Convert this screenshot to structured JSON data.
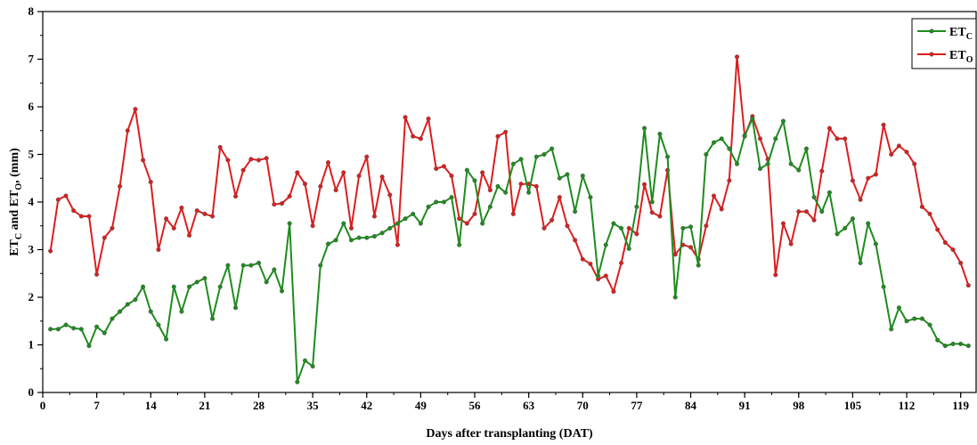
{
  "chart_data": {
    "type": "line",
    "xlabel": "Days after transplanting (DAT)",
    "ylabel_parts": [
      "ET",
      "C",
      " and ET",
      "O",
      ", (mm)"
    ],
    "xlim": [
      0,
      121
    ],
    "ylim": [
      0,
      8
    ],
    "x_ticks": [
      0,
      7,
      14,
      21,
      28,
      35,
      42,
      49,
      56,
      63,
      70,
      77,
      84,
      91,
      98,
      105,
      112,
      119
    ],
    "y_ticks": [
      0,
      1,
      2,
      3,
      4,
      5,
      6,
      7,
      8
    ],
    "grid": false,
    "legend_position": "top-right",
    "x": [
      1,
      2,
      3,
      4,
      5,
      6,
      7,
      8,
      9,
      10,
      11,
      12,
      13,
      14,
      15,
      16,
      17,
      18,
      19,
      20,
      21,
      22,
      23,
      24,
      25,
      26,
      27,
      28,
      29,
      30,
      31,
      32,
      33,
      34,
      35,
      36,
      37,
      38,
      39,
      40,
      41,
      42,
      43,
      44,
      45,
      46,
      47,
      48,
      49,
      50,
      51,
      52,
      53,
      54,
      55,
      56,
      57,
      58,
      59,
      60,
      61,
      62,
      63,
      64,
      65,
      66,
      67,
      68,
      69,
      70,
      71,
      72,
      73,
      74,
      75,
      76,
      77,
      78,
      79,
      80,
      81,
      82,
      83,
      84,
      85,
      86,
      87,
      88,
      89,
      90,
      91,
      92,
      93,
      94,
      95,
      96,
      97,
      98,
      99,
      100,
      101,
      102,
      103,
      104,
      105,
      106,
      107,
      108,
      109,
      110,
      111,
      112,
      113,
      114,
      115,
      116,
      117,
      118,
      119,
      120
    ],
    "series": [
      {
        "name_parts": [
          "ET",
          "C"
        ],
        "color": "#1e8c1e",
        "values": [
          1.33,
          1.33,
          1.42,
          1.35,
          1.33,
          0.98,
          1.38,
          1.25,
          1.55,
          1.7,
          1.85,
          1.95,
          2.22,
          1.7,
          1.42,
          1.12,
          2.22,
          1.7,
          2.22,
          2.32,
          2.4,
          1.55,
          2.22,
          2.67,
          1.78,
          2.67,
          2.67,
          2.72,
          2.32,
          2.58,
          2.13,
          3.55,
          0.22,
          0.67,
          0.55,
          2.67,
          3.12,
          3.2,
          3.55,
          3.2,
          3.25,
          3.25,
          3.28,
          3.35,
          3.45,
          3.55,
          3.65,
          3.75,
          3.55,
          3.9,
          4.0,
          4.0,
          4.1,
          3.1,
          4.67,
          4.45,
          3.55,
          3.9,
          4.33,
          4.2,
          4.8,
          4.9,
          4.2,
          4.95,
          5.0,
          5.12,
          4.5,
          4.58,
          3.8,
          4.55,
          4.1,
          2.45,
          3.1,
          3.55,
          3.45,
          3.02,
          3.9,
          5.55,
          4.0,
          5.43,
          4.95,
          2.0,
          3.45,
          3.48,
          2.67,
          5.0,
          5.25,
          5.33,
          5.12,
          4.8,
          5.4,
          5.75,
          4.7,
          4.8,
          5.33,
          5.7,
          4.8,
          4.67,
          5.12,
          4.1,
          3.8,
          4.2,
          3.33,
          3.45,
          3.65,
          2.72,
          3.55,
          3.12,
          2.22,
          1.33,
          1.78,
          1.5,
          1.55,
          1.55,
          1.42,
          1.1,
          0.98,
          1.02,
          1.02,
          0.98
        ]
      },
      {
        "name_parts": [
          "ET",
          "O"
        ],
        "color": "#dc1e1e",
        "values": [
          2.97,
          4.05,
          4.13,
          3.82,
          3.7,
          3.7,
          2.48,
          3.25,
          3.45,
          4.33,
          5.5,
          5.95,
          4.88,
          4.42,
          3.0,
          3.65,
          3.45,
          3.88,
          3.3,
          3.82,
          3.75,
          3.7,
          5.15,
          4.88,
          4.12,
          4.67,
          4.9,
          4.88,
          4.92,
          3.95,
          3.97,
          4.12,
          4.62,
          4.38,
          3.5,
          4.33,
          4.83,
          4.25,
          4.62,
          3.45,
          4.55,
          4.95,
          3.7,
          4.53,
          4.15,
          3.1,
          5.78,
          5.38,
          5.33,
          5.75,
          4.7,
          4.75,
          4.55,
          3.65,
          3.55,
          3.75,
          4.62,
          4.25,
          5.38,
          5.47,
          3.75,
          4.38,
          4.38,
          4.33,
          3.45,
          3.62,
          4.1,
          3.5,
          3.2,
          2.8,
          2.7,
          2.38,
          2.45,
          2.12,
          2.72,
          3.45,
          3.33,
          4.37,
          3.78,
          3.7,
          4.67,
          2.9,
          3.1,
          3.05,
          2.8,
          3.5,
          4.13,
          3.85,
          4.45,
          7.05,
          5.38,
          5.8,
          5.33,
          4.9,
          2.47,
          3.55,
          3.12,
          3.8,
          3.8,
          3.62,
          4.65,
          5.55,
          5.33,
          5.33,
          4.45,
          4.05,
          4.5,
          4.58,
          5.62,
          5.0,
          5.18,
          5.05,
          4.8,
          3.9,
          3.75,
          3.42,
          3.15,
          3.0,
          2.72,
          2.25
        ]
      }
    ]
  }
}
